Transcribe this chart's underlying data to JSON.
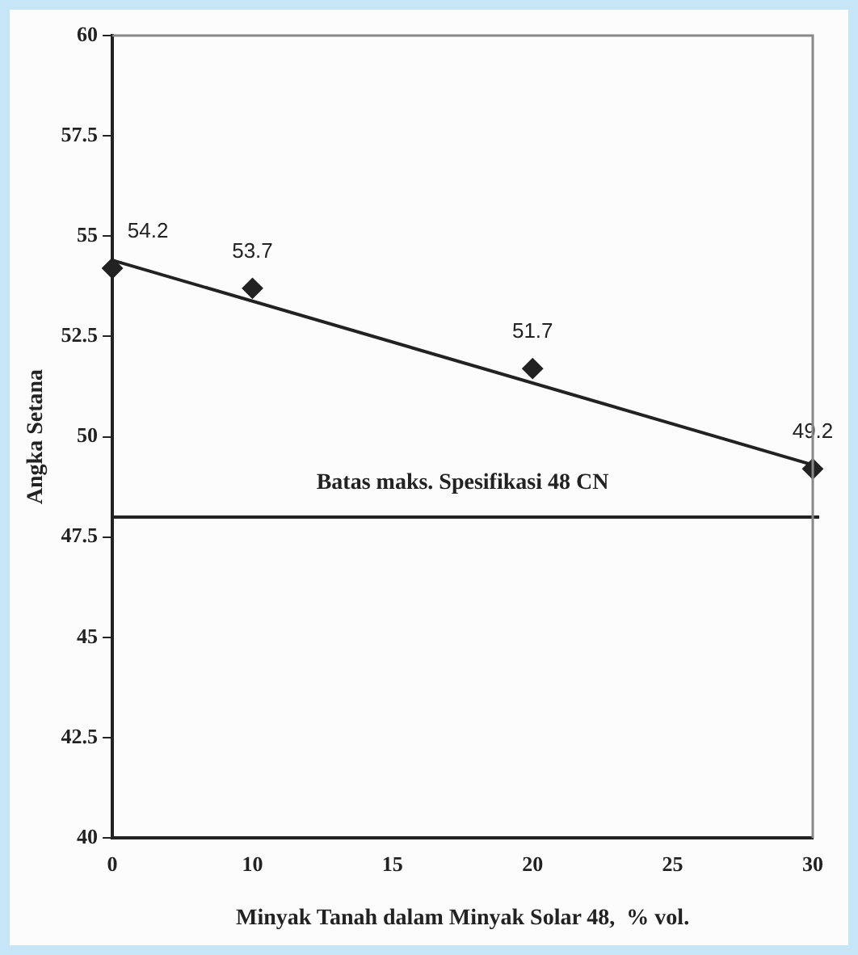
{
  "chart_data": {
    "type": "scatter",
    "xlabel": "Minyak Tanah dalam Minyak Solar 48,  % vol.",
    "ylabel": "Angka Setana",
    "categories": [
      "0",
      "10",
      "15",
      "20",
      "25",
      "30"
    ],
    "series": [
      {
        "color": "#222222",
        "values": [
          54.2,
          53.7,
          null,
          51.7,
          null,
          49.2
        ],
        "marker": "diamond",
        "data_labels": true
      },
      {
        "type": "line",
        "color": "#222222",
        "values": [
          54.4,
          null,
          null,
          null,
          null,
          49.3
        ],
        "marker": "none",
        "line_style": "solid"
      }
    ],
    "ylim": [
      40,
      60
    ],
    "yticks": [
      40,
      42.5,
      45,
      47.5,
      50,
      52.5,
      55,
      57.5,
      60
    ],
    "grid": false,
    "legend": false,
    "ref_lines": [
      {
        "axis": "y",
        "value": 48,
        "label": "Batas maks. Spesifikasi 48 CN",
        "color": "#222222",
        "line_style": "solid"
      }
    ]
  }
}
